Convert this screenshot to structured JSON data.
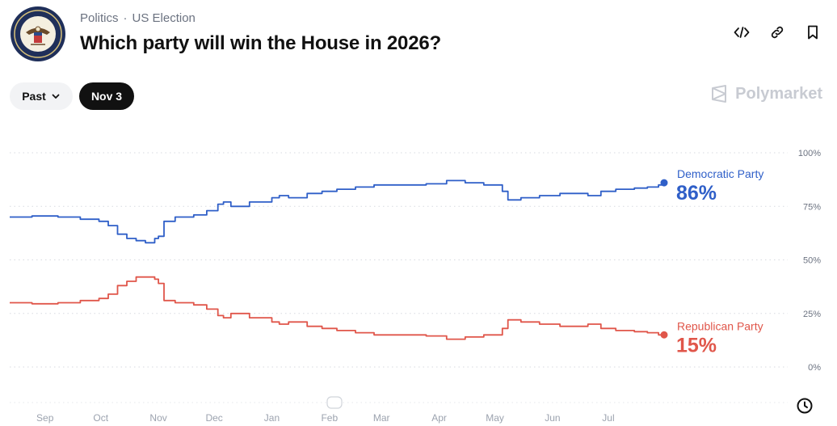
{
  "header": {
    "breadcrumb": [
      "Politics",
      "US Election"
    ],
    "breadcrumb_separator": "·",
    "title": "Which party will win the House in 2026?"
  },
  "controls": {
    "range_label": "Past",
    "date_label": "Nov 3"
  },
  "brand": {
    "name": "Polymarket"
  },
  "icons": {
    "embed": "code-icon",
    "link": "link-icon",
    "bookmark": "bookmark-icon",
    "clock": "clock-icon",
    "dropdown": "chevron-down-icon"
  },
  "chart_data": {
    "type": "line",
    "x_ticks": [
      "Sep",
      "Oct",
      "Nov",
      "Dec",
      "Jan",
      "Feb",
      "Mar",
      "Apr",
      "May",
      "Jun",
      "Jul"
    ],
    "y_ticks": [
      "100%",
      "75%",
      "50%",
      "25%",
      "0%"
    ],
    "ylim": [
      0,
      100
    ],
    "grid": "dotted horizontal",
    "series": [
      {
        "name": "Democratic Party",
        "color": "#2f5fc8",
        "current": "86%",
        "values": [
          [
            "Aug 13",
            70
          ],
          [
            "Aug 25",
            70.5
          ],
          [
            "Sep 8",
            70
          ],
          [
            "Sep 20",
            69
          ],
          [
            "Sep 30",
            68
          ],
          [
            "Oct 5",
            66
          ],
          [
            "Oct 10",
            62
          ],
          [
            "Oct 15",
            60
          ],
          [
            "Oct 20",
            59
          ],
          [
            "Oct 25",
            58
          ],
          [
            "Oct 30",
            60
          ],
          [
            "Nov 1",
            61
          ],
          [
            "Nov 4",
            68
          ],
          [
            "Nov 10",
            70
          ],
          [
            "Nov 20",
            71
          ],
          [
            "Nov 27",
            73
          ],
          [
            "Dec 3",
            76
          ],
          [
            "Dec 6",
            77
          ],
          [
            "Dec 10",
            75
          ],
          [
            "Dec 20",
            77
          ],
          [
            "Jan 1",
            79
          ],
          [
            "Jan 5",
            80
          ],
          [
            "Jan 10",
            79
          ],
          [
            "Jan 20",
            81
          ],
          [
            "Jan 28",
            82
          ],
          [
            "Feb 5",
            83
          ],
          [
            "Feb 15",
            84
          ],
          [
            "Feb 25",
            85
          ],
          [
            "Mar 5",
            85
          ],
          [
            "Mar 15",
            85
          ],
          [
            "Mar 25",
            85.5
          ],
          [
            "Apr 5",
            87
          ],
          [
            "Apr 15",
            86
          ],
          [
            "Apr 25",
            85
          ],
          [
            "May 5",
            82
          ],
          [
            "May 8",
            78
          ],
          [
            "May 15",
            79
          ],
          [
            "May 25",
            80
          ],
          [
            "Jun 5",
            81
          ],
          [
            "Jun 15",
            81
          ],
          [
            "Jun 20",
            80
          ],
          [
            "Jun 27",
            82
          ],
          [
            "Jul 5",
            83
          ],
          [
            "Jul 15",
            83.5
          ],
          [
            "Jul 22",
            84
          ],
          [
            "Jul 28",
            85
          ],
          [
            "Jul 31",
            86
          ]
        ]
      },
      {
        "name": "Republican Party",
        "color": "#e0564a",
        "current": "15%",
        "values": [
          [
            "Aug 13",
            30
          ],
          [
            "Aug 25",
            29.5
          ],
          [
            "Sep 8",
            30
          ],
          [
            "Sep 20",
            31
          ],
          [
            "Sep 30",
            32
          ],
          [
            "Oct 5",
            34
          ],
          [
            "Oct 10",
            38
          ],
          [
            "Oct 15",
            40
          ],
          [
            "Oct 20",
            42
          ],
          [
            "Oct 25",
            42
          ],
          [
            "Oct 30",
            41
          ],
          [
            "Nov 1",
            39
          ],
          [
            "Nov 4",
            31
          ],
          [
            "Nov 10",
            30
          ],
          [
            "Nov 20",
            29
          ],
          [
            "Nov 27",
            27
          ],
          [
            "Dec 3",
            24
          ],
          [
            "Dec 6",
            23
          ],
          [
            "Dec 10",
            25
          ],
          [
            "Dec 20",
            23
          ],
          [
            "Jan 1",
            21
          ],
          [
            "Jan 5",
            20
          ],
          [
            "Jan 10",
            21
          ],
          [
            "Jan 20",
            19
          ],
          [
            "Jan 28",
            18
          ],
          [
            "Feb 5",
            17
          ],
          [
            "Feb 15",
            16
          ],
          [
            "Feb 25",
            15
          ],
          [
            "Mar 5",
            15
          ],
          [
            "Mar 15",
            15
          ],
          [
            "Mar 25",
            14.5
          ],
          [
            "Apr 5",
            13
          ],
          [
            "Apr 15",
            14
          ],
          [
            "Apr 25",
            15
          ],
          [
            "May 5",
            18
          ],
          [
            "May 8",
            22
          ],
          [
            "May 15",
            21
          ],
          [
            "May 25",
            20
          ],
          [
            "Jun 5",
            19
          ],
          [
            "Jun 15",
            19
          ],
          [
            "Jun 20",
            20
          ],
          [
            "Jun 27",
            18
          ],
          [
            "Jul 5",
            17
          ],
          [
            "Jul 15",
            16.5
          ],
          [
            "Jul 22",
            16
          ],
          [
            "Jul 28",
            15
          ],
          [
            "Jul 31",
            15
          ]
        ]
      }
    ]
  }
}
